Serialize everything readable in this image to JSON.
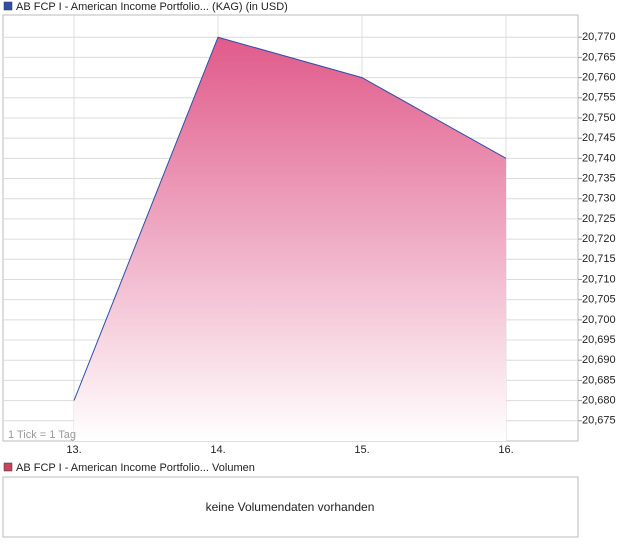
{
  "chart_data": {
    "type": "area",
    "title": "AB FCP I - American Income Portfolio... (KAG) (in USD)",
    "annotation": "1 Tick = 1 Tag",
    "categories": [
      "13.",
      "14.",
      "15.",
      "16."
    ],
    "series": [
      {
        "color": "#2f4fa8",
        "fill": "#e05a8a",
        "values": [
          20.68,
          20.77,
          20.76,
          20.74
        ]
      }
    ],
    "ylim": [
      20.67,
      20.7755
    ],
    "yticks": [
      {
        "value": 20.675,
        "label": "20,675"
      },
      {
        "value": 20.68,
        "label": "20,680"
      },
      {
        "value": 20.685,
        "label": "20,685"
      },
      {
        "value": 20.69,
        "label": "20,690"
      },
      {
        "value": 20.695,
        "label": "20,695"
      },
      {
        "value": 20.7,
        "label": "20,700"
      },
      {
        "value": 20.705,
        "label": "20,705"
      },
      {
        "value": 20.71,
        "label": "20,710"
      },
      {
        "value": 20.715,
        "label": "20,715"
      },
      {
        "value": 20.72,
        "label": "20,720"
      },
      {
        "value": 20.725,
        "label": "20,725"
      },
      {
        "value": 20.73,
        "label": "20,730"
      },
      {
        "value": 20.735,
        "label": "20,735"
      },
      {
        "value": 20.74,
        "label": "20,740"
      },
      {
        "value": 20.745,
        "label": "20,745"
      },
      {
        "value": 20.75,
        "label": "20,750"
      },
      {
        "value": 20.755,
        "label": "20,755"
      },
      {
        "value": 20.76,
        "label": "20,760"
      },
      {
        "value": 20.765,
        "label": "20,765"
      },
      {
        "value": 20.77,
        "label": "20,770"
      }
    ],
    "grid": true
  },
  "volume_panel": {
    "title": "AB FCP I - American Income Portfolio... Volumen",
    "color": "#c8455e",
    "message": "keine Volumendaten vorhanden"
  }
}
